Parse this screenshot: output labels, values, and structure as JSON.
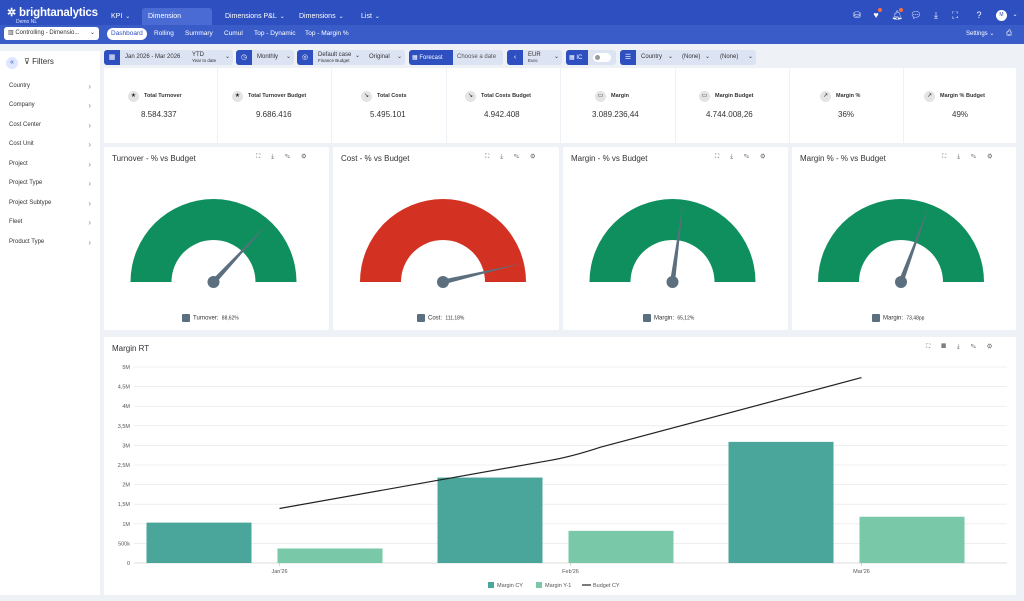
{
  "app": {
    "logo": "brightanalytics",
    "sub": "Demo NL"
  },
  "nav": {
    "tabs": [
      {
        "label": "KPI"
      },
      {
        "label": "Dimension Analysis"
      },
      {
        "label": "Dimensions P&L"
      },
      {
        "label": "Dimensions"
      },
      {
        "label": "List"
      }
    ]
  },
  "report_select": "Controlling - Dimensio...",
  "subtabs": [
    "Dashboard",
    "Rolling",
    "Summary",
    "Cumul",
    "Top - Dynamic",
    "Top - Margin %"
  ],
  "settings": "Settings",
  "avatar": "M",
  "filters": {
    "title": "Filters",
    "items": [
      "Country",
      "Company",
      "Cost Center",
      "Cost Unit",
      "Project",
      "Project Type",
      "Project Subtype",
      "Fleet",
      "Product Type"
    ]
  },
  "controls": {
    "period": "Jan 2026 - Mar 2026",
    "ytd": "YTD",
    "ytd_sub": "Year to date",
    "freq": "Monthly",
    "scenario": "Default case",
    "scenario_sub": "Finance Budget",
    "version": "Original",
    "forecast": "Forecast",
    "date_placeholder": "Choose a date",
    "currency": "EUR",
    "currency_sub": "Euro",
    "ic": "IC",
    "country": "Country",
    "none1": "(None)",
    "none2": "(None)"
  },
  "kpis": [
    {
      "label": "Total Turnover",
      "value": "8.584.337",
      "icon": "star-icon"
    },
    {
      "label": "Total Turnover Budget",
      "value": "9.686.416",
      "icon": "star-icon"
    },
    {
      "label": "Total Costs",
      "value": "5.495.101",
      "icon": "trend-down-icon"
    },
    {
      "label": "Total Costs Budget",
      "value": "4.942.408",
      "icon": "trend-down-icon"
    },
    {
      "label": "Margin",
      "value": "3.089.236,44",
      "icon": "money-icon"
    },
    {
      "label": "Margin Budget",
      "value": "4.744.008,26",
      "icon": "money-icon"
    },
    {
      "label": "Margin %",
      "value": "36%",
      "icon": "trend-up-icon"
    },
    {
      "label": "Margin % Budget",
      "value": "49%",
      "icon": "trend-up-icon"
    }
  ],
  "gauges": [
    {
      "title": "Turnover - % vs Budget",
      "legend": "Turnover:",
      "value": "88,62%",
      "pct": 0.8862,
      "color": "#0f8f5e"
    },
    {
      "title": "Cost - % vs Budget",
      "legend": "Cost:",
      "value": "111,18%",
      "pct": 1.1118,
      "color": "#d33222"
    },
    {
      "title": "Margin - % vs Budget",
      "legend": "Margin:",
      "value": "65,12%",
      "pct": 0.6512,
      "color": "#0f8f5e"
    },
    {
      "title": "Margin % - % vs Budget",
      "legend": "Margin:",
      "value": "73,48pp",
      "pct": 0.7348,
      "color": "#0f8f5e"
    }
  ],
  "chart_data": {
    "type": "bar",
    "title": "Margin RT",
    "categories": [
      "Jan'26",
      "Feb'26",
      "Mar'26"
    ],
    "y_ticks": [
      "0",
      "500k",
      "1M",
      "1,5M",
      "2M",
      "2,5M",
      "3M",
      "3,5M",
      "4M",
      "4,5M",
      "5M"
    ],
    "ylim": [
      0,
      5000000
    ],
    "series": [
      {
        "name": "Margin CY",
        "type": "bar",
        "color": "#4aa59b",
        "values": [
          1030000,
          2180000,
          3090000
        ]
      },
      {
        "name": "Margin Y-1",
        "type": "bar",
        "color": "#79c9a9",
        "values": [
          370000,
          820000,
          1180000
        ]
      },
      {
        "name": "Budget CY",
        "type": "line",
        "color": "#222222",
        "values": [
          1390000,
          2700000,
          4730000
        ]
      }
    ]
  }
}
